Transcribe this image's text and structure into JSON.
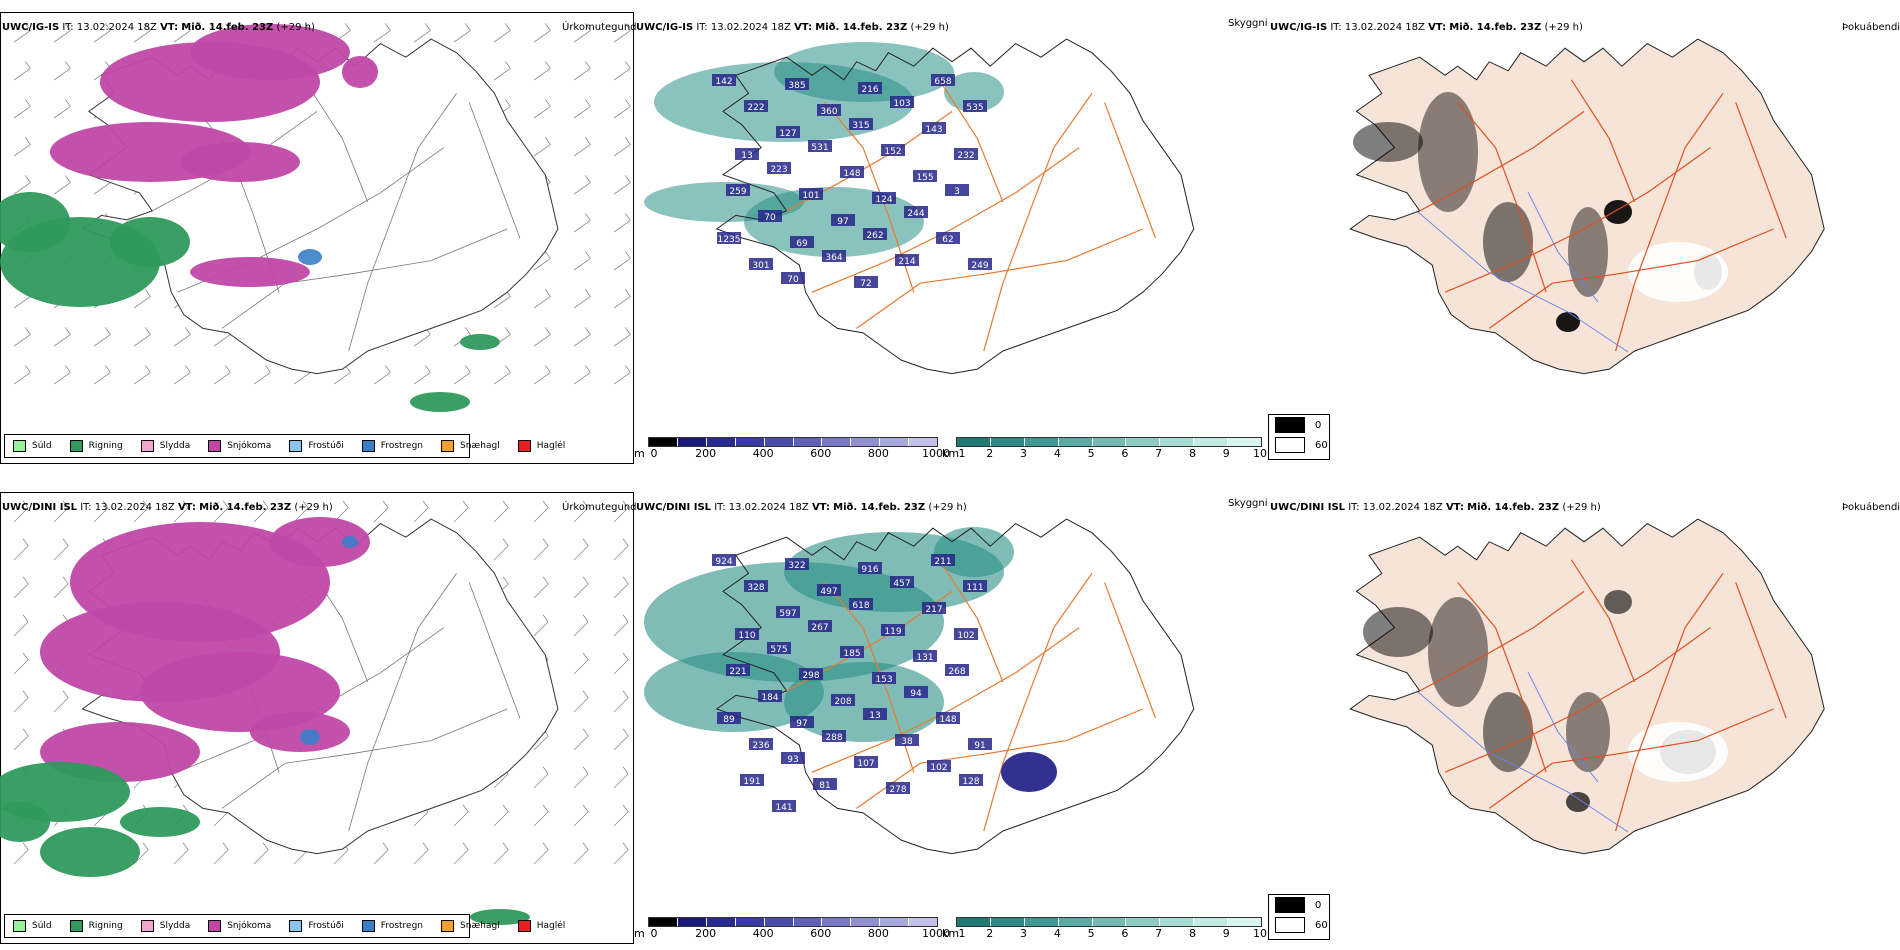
{
  "rows": [
    {
      "model": "UWC/IG-IS",
      "it": "IT: 13.02.2024 18Z",
      "vt_label": "VT:",
      "vt_value": "Mið. 14.feb. 23Z",
      "lead": "(+29 h)",
      "title_left": "Úrkomutegund",
      "title_mid": "Skyggni",
      "title_right": "Þokuábendi"
    },
    {
      "model": "UWC/DINI ISL",
      "it": "IT: 13.02.2024 18Z",
      "vt_label": "VT:",
      "vt_value": "Mið. 14.feb. 23Z",
      "lead": "(+29 h)",
      "title_left": "Úrkomutegund",
      "title_mid": "Skyggni",
      "title_right": "Þokuábendi"
    }
  ],
  "precip_legend": [
    {
      "label": "Súld",
      "color": "#98f09a"
    },
    {
      "label": "Rigning",
      "color": "#2e9a5c"
    },
    {
      "label": "Slydda",
      "color": "#f2a6cf"
    },
    {
      "label": "Snjókoma",
      "color": "#c048a8"
    },
    {
      "label": "Frostúði",
      "color": "#8cc4f0"
    },
    {
      "label": "Frostregn",
      "color": "#3a80c8"
    },
    {
      "label": "Snæhagl",
      "color": "#f0a030"
    },
    {
      "label": "Haglél",
      "color": "#e82020"
    }
  ],
  "ceiling_scale": {
    "unit": "m",
    "ticks": [
      "0",
      "200",
      "400",
      "600",
      "800",
      "1000"
    ],
    "colors": [
      "#000000",
      "#1a1a7a",
      "#2a2a90",
      "#3a3aa0",
      "#4a4aaa",
      "#6060b8",
      "#7878c4",
      "#9090d0",
      "#a8a8dc",
      "#c0c0e8"
    ]
  },
  "visibility_scale": {
    "unit": "km",
    "ticks": [
      "1",
      "2",
      "3",
      "4",
      "5",
      "6",
      "7",
      "8",
      "9",
      "10"
    ],
    "colors": [
      "#1e7a72",
      "#2e8a82",
      "#3e9a92",
      "#58aaa2",
      "#72bab2",
      "#8ccac2",
      "#a6dad2",
      "#c0eae2",
      "#daf4f0"
    ]
  },
  "fog_legend": [
    {
      "label": "0",
      "color": "#000000"
    },
    {
      "label": "60",
      "color": "#ffffff"
    }
  ],
  "ceiling_labels": [
    [
      "142",
      "385",
      "216",
      "658",
      "222",
      "360",
      "103",
      "535",
      "127",
      "315",
      "143",
      "13",
      "531",
      "152",
      "232",
      "223",
      "148",
      "155",
      "259",
      "101",
      "124",
      "3",
      "70",
      "97",
      "244",
      "1235",
      "69",
      "262",
      "62",
      "301",
      "364",
      "214",
      "249",
      "70",
      "72"
    ],
    [
      "924",
      "322",
      "916",
      "211",
      "328",
      "497",
      "457",
      "111",
      "597",
      "618",
      "217",
      "110",
      "267",
      "119",
      "102",
      "575",
      "185",
      "131",
      "221",
      "298",
      "153",
      "268",
      "184",
      "208",
      "94",
      "89",
      "97",
      "13",
      "148",
      "236",
      "288",
      "38",
      "91",
      "93",
      "107",
      "102",
      "191",
      "81",
      "278",
      "128",
      "141"
    ]
  ],
  "colors": {
    "snow": "#c048a8",
    "rain": "#2e9a5c",
    "teal": "#2a8f86",
    "roads": "#e87a30",
    "land": "#f6e4d8",
    "ceiling": "#26268a"
  }
}
